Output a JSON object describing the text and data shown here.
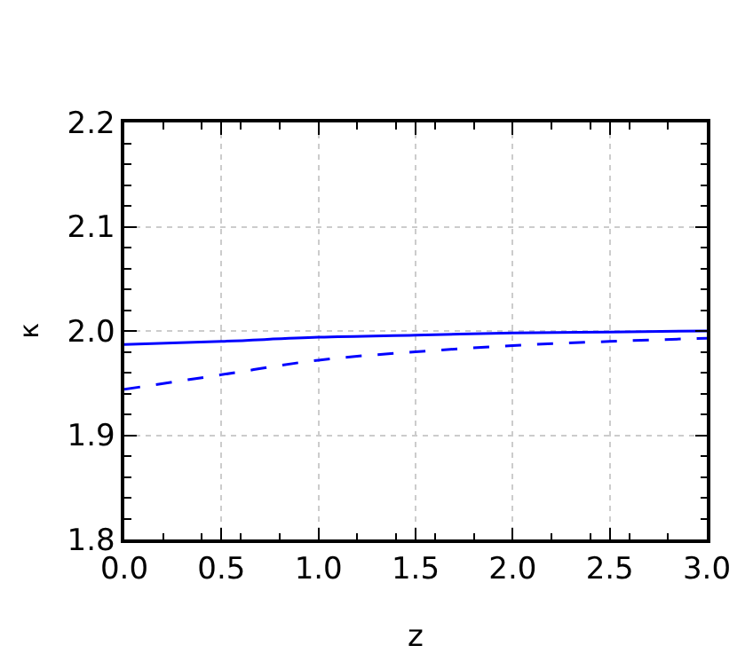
{
  "chart_data": {
    "type": "line",
    "xlabel": "z",
    "ylabel": "κ",
    "x": [
      0,
      0.5,
      1,
      1.5,
      2,
      2.5,
      3
    ],
    "series": [
      {
        "color": "#0000ff",
        "line_style": "solid",
        "values": [
          1.987,
          1.99,
          1.994,
          1.996,
          1.998,
          1.999,
          2.0
        ]
      },
      {
        "color": "#0000ff",
        "line_style": "dashed",
        "values": [
          1.944,
          1.958,
          1.972,
          1.98,
          1.986,
          1.99,
          1.993
        ]
      }
    ],
    "xlim": [
      0,
      3
    ],
    "xticks": [
      {
        "value": 0,
        "label": "0.0"
      },
      0.5,
      {
        "value": 1,
        "label": "1.0"
      },
      1.5,
      {
        "value": 2,
        "label": "2.0"
      },
      2.5,
      {
        "value": 3,
        "label": "3.0"
      }
    ],
    "ylim": [
      1.8,
      2.2
    ],
    "yticks": [
      1.8,
      1.9,
      {
        "value": 2,
        "label": "2.0"
      },
      2.1,
      2.2
    ],
    "grid": true,
    "marker": "none"
  }
}
